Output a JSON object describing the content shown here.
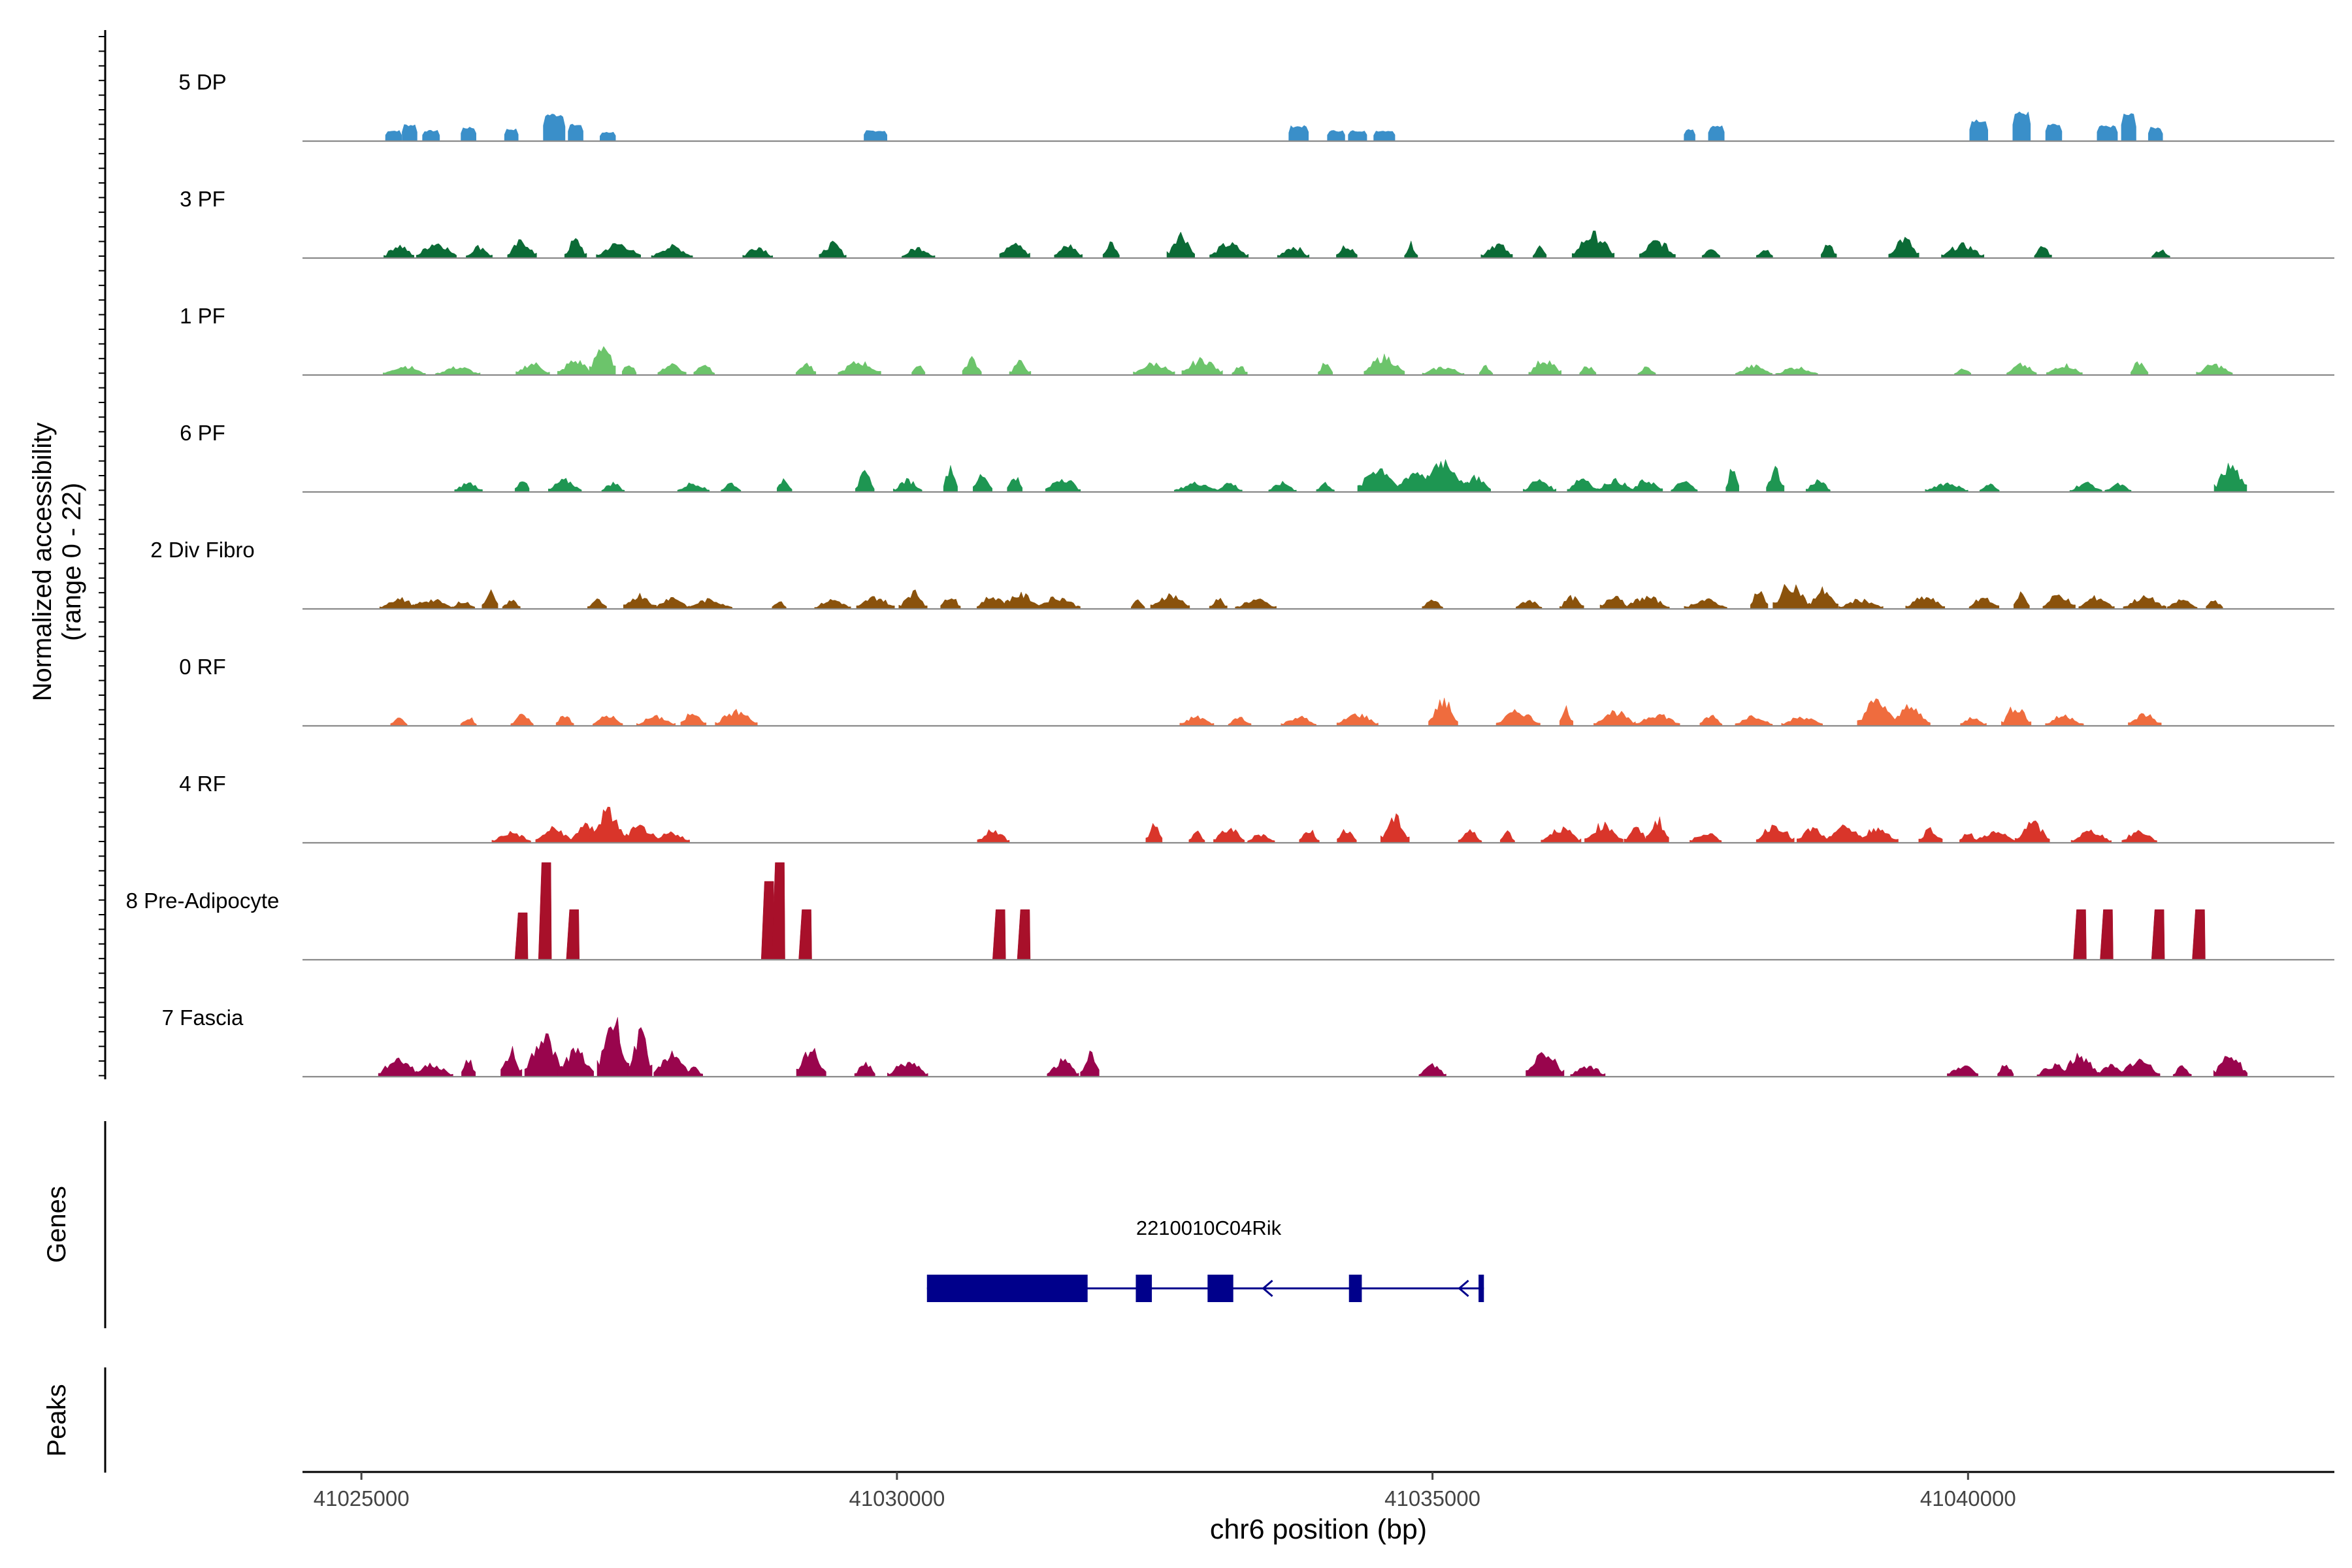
{
  "chart_data": {
    "type": "coverage-track",
    "y_axis_label": "Normalized accessibility",
    "y_axis_sublabel": "(range 0 - 22)",
    "yrange": [
      0,
      22
    ],
    "x_axis_title": "chr6 position (bp)",
    "xlim": [
      41024450,
      41043420
    ],
    "x_ticks": [
      {
        "value": 41025000,
        "label": "41025000"
      },
      {
        "value": 41030000,
        "label": "41030000"
      },
      {
        "value": 41035000,
        "label": "41035000"
      },
      {
        "value": 41040000,
        "label": "41040000"
      }
    ],
    "tracks": [
      {
        "name": "5 DP",
        "color": "#3a8fc9",
        "spiky": false,
        "peaks": [
          [
            41025300,
            0.35
          ],
          [
            41025450,
            0.55
          ],
          [
            41025650,
            0.35
          ],
          [
            41026000,
            0.45
          ],
          [
            41026400,
            0.4
          ],
          [
            41026800,
            0.9
          ],
          [
            41027000,
            0.55
          ],
          [
            41027300,
            0.3
          ],
          [
            41029800,
            0.35
          ],
          [
            41033750,
            0.5
          ],
          [
            41034100,
            0.35
          ],
          [
            41034300,
            0.35
          ],
          [
            41034550,
            0.35
          ],
          [
            41037400,
            0.4
          ],
          [
            41037650,
            0.5
          ],
          [
            41040100,
            0.7
          ],
          [
            41040500,
            0.95
          ],
          [
            41040800,
            0.55
          ],
          [
            41041300,
            0.5
          ],
          [
            41041500,
            0.9
          ],
          [
            41041750,
            0.45
          ]
        ]
      },
      {
        "name": "3 PF",
        "color": "#0b6b36",
        "spiky": true,
        "peaks": [
          [
            41025350,
            0.5
          ],
          [
            41025700,
            0.6
          ],
          [
            41026100,
            0.45
          ],
          [
            41026500,
            0.65
          ],
          [
            41027000,
            0.7
          ],
          [
            41027400,
            0.55
          ],
          [
            41027900,
            0.45
          ],
          [
            41028700,
            0.45
          ],
          [
            41029400,
            0.55
          ],
          [
            41030200,
            0.4
          ],
          [
            41031100,
            0.7
          ],
          [
            41031600,
            0.5
          ],
          [
            41032000,
            0.6
          ],
          [
            41032650,
            0.95
          ],
          [
            41033100,
            0.55
          ],
          [
            41033700,
            0.45
          ],
          [
            41034200,
            0.5
          ],
          [
            41034800,
            0.55
          ],
          [
            41035600,
            0.55
          ],
          [
            41036000,
            0.45
          ],
          [
            41036500,
            0.9
          ],
          [
            41037100,
            0.65
          ],
          [
            41037600,
            0.45
          ],
          [
            41038100,
            0.4
          ],
          [
            41038700,
            0.55
          ],
          [
            41039400,
            0.75
          ],
          [
            41039950,
            0.5
          ],
          [
            41040700,
            0.45
          ],
          [
            41041800,
            0.35
          ]
        ]
      },
      {
        "name": "1 PF",
        "color": "#6cc46b",
        "spiky": true,
        "peaks": [
          [
            41025400,
            0.35
          ],
          [
            41025900,
            0.3
          ],
          [
            41026600,
            0.45
          ],
          [
            41027000,
            0.55
          ],
          [
            41027250,
            1.2
          ],
          [
            41027500,
            0.5
          ],
          [
            41027900,
            0.45
          ],
          [
            41028200,
            0.45
          ],
          [
            41029150,
            0.45
          ],
          [
            41029650,
            0.5
          ],
          [
            41030200,
            0.45
          ],
          [
            41030700,
            0.65
          ],
          [
            41031150,
            0.5
          ],
          [
            41032400,
            0.45
          ],
          [
            41032850,
            0.6
          ],
          [
            41033200,
            0.4
          ],
          [
            41034000,
            0.45
          ],
          [
            41034550,
            0.7
          ],
          [
            41035100,
            0.3
          ],
          [
            41035500,
            0.35
          ],
          [
            41036050,
            0.6
          ],
          [
            41036450,
            0.35
          ],
          [
            41037000,
            0.3
          ],
          [
            41038000,
            0.35
          ],
          [
            41038400,
            0.3
          ],
          [
            41039950,
            0.3
          ],
          [
            41040500,
            0.4
          ],
          [
            41040900,
            0.4
          ],
          [
            41041600,
            0.55
          ],
          [
            41042300,
            0.4
          ]
        ]
      },
      {
        "name": "6 PF",
        "color": "#1e9652",
        "spiky": true,
        "peaks": [
          [
            41026000,
            0.35
          ],
          [
            41026500,
            0.55
          ],
          [
            41026900,
            0.45
          ],
          [
            41027350,
            0.35
          ],
          [
            41028100,
            0.35
          ],
          [
            41028450,
            0.35
          ],
          [
            41028950,
            0.55
          ],
          [
            41029700,
            0.7
          ],
          [
            41030100,
            0.45
          ],
          [
            41030500,
            1.05
          ],
          [
            41030800,
            0.7
          ],
          [
            41031100,
            0.65
          ],
          [
            41031550,
            0.55
          ],
          [
            41032800,
            0.35
          ],
          [
            41033100,
            0.35
          ],
          [
            41033600,
            0.35
          ],
          [
            41034000,
            0.35
          ],
          [
            41034500,
            0.95
          ],
          [
            41034850,
            0.8
          ],
          [
            41035100,
            1.25
          ],
          [
            41035400,
            0.6
          ],
          [
            41036000,
            0.45
          ],
          [
            41036400,
            0.55
          ],
          [
            41036700,
            0.45
          ],
          [
            41037000,
            0.45
          ],
          [
            41037350,
            0.4
          ],
          [
            41037800,
            0.9
          ],
          [
            41038200,
            0.9
          ],
          [
            41038600,
            0.45
          ],
          [
            41039800,
            0.35
          ],
          [
            41040200,
            0.3
          ],
          [
            41041100,
            0.35
          ],
          [
            41041400,
            0.3
          ],
          [
            41042450,
            1.0
          ]
        ]
      },
      {
        "name": "2 Div Fibro",
        "color": "#8a520c",
        "spiky": true,
        "peaks": [
          [
            41025350,
            0.4
          ],
          [
            41025650,
            0.35
          ],
          [
            41025950,
            0.3
          ],
          [
            41026200,
            0.7
          ],
          [
            41026400,
            0.35
          ],
          [
            41027200,
            0.35
          ],
          [
            41027600,
            0.55
          ],
          [
            41027900,
            0.45
          ],
          [
            41028250,
            0.35
          ],
          [
            41028900,
            0.35
          ],
          [
            41029400,
            0.35
          ],
          [
            41029800,
            0.45
          ],
          [
            41030150,
            0.65
          ],
          [
            41030500,
            0.55
          ],
          [
            41030900,
            0.5
          ],
          [
            41031150,
            0.55
          ],
          [
            41031500,
            0.45
          ],
          [
            41032250,
            0.35
          ],
          [
            41032550,
            0.55
          ],
          [
            41033000,
            0.4
          ],
          [
            41033350,
            0.35
          ],
          [
            41035000,
            0.35
          ],
          [
            41035900,
            0.35
          ],
          [
            41036300,
            0.45
          ],
          [
            41036700,
            0.55
          ],
          [
            41037000,
            0.45
          ],
          [
            41037550,
            0.35
          ],
          [
            41038050,
            0.7
          ],
          [
            41038350,
            0.95
          ],
          [
            41038650,
            0.75
          ],
          [
            41039000,
            0.35
          ],
          [
            41039600,
            0.45
          ],
          [
            41040150,
            0.45
          ],
          [
            41040500,
            0.65
          ],
          [
            41040850,
            0.55
          ],
          [
            41041200,
            0.45
          ],
          [
            41041650,
            0.45
          ],
          [
            41042000,
            0.35
          ],
          [
            41042300,
            0.35
          ]
        ]
      },
      {
        "name": "0 RF",
        "color": "#ef6c3e",
        "spiky": true,
        "peaks": [
          [
            41025350,
            0.3
          ],
          [
            41026000,
            0.35
          ],
          [
            41026500,
            0.4
          ],
          [
            41026900,
            0.45
          ],
          [
            41027300,
            0.4
          ],
          [
            41027750,
            0.35
          ],
          [
            41028100,
            0.55
          ],
          [
            41028500,
            0.55
          ],
          [
            41032800,
            0.35
          ],
          [
            41033200,
            0.35
          ],
          [
            41033750,
            0.35
          ],
          [
            41034300,
            0.45
          ],
          [
            41035100,
            0.95
          ],
          [
            41035800,
            0.55
          ],
          [
            41036250,
            0.7
          ],
          [
            41036700,
            0.55
          ],
          [
            41037100,
            0.45
          ],
          [
            41037600,
            0.4
          ],
          [
            41038000,
            0.4
          ],
          [
            41038450,
            0.35
          ],
          [
            41039150,
            0.95
          ],
          [
            41039450,
            0.7
          ],
          [
            41040050,
            0.35
          ],
          [
            41040450,
            0.75
          ],
          [
            41040900,
            0.4
          ],
          [
            41041650,
            0.45
          ]
        ]
      },
      {
        "name": "4 RF",
        "color": "#d9352a",
        "spiky": true,
        "peaks": [
          [
            41026400,
            0.4
          ],
          [
            41026800,
            0.55
          ],
          [
            41027100,
            0.65
          ],
          [
            41027300,
            1.2
          ],
          [
            41027600,
            0.6
          ],
          [
            41027900,
            0.4
          ],
          [
            41030900,
            0.5
          ],
          [
            41032400,
            0.7
          ],
          [
            41032800,
            0.45
          ],
          [
            41033100,
            0.55
          ],
          [
            41033400,
            0.35
          ],
          [
            41033850,
            0.5
          ],
          [
            41034200,
            0.55
          ],
          [
            41034650,
            0.95
          ],
          [
            41035350,
            0.45
          ],
          [
            41035700,
            0.45
          ],
          [
            41036200,
            0.55
          ],
          [
            41036600,
            0.7
          ],
          [
            41036900,
            0.55
          ],
          [
            41037100,
            0.9
          ],
          [
            41037550,
            0.4
          ],
          [
            41038200,
            0.7
          ],
          [
            41038550,
            0.55
          ],
          [
            41038850,
            0.6
          ],
          [
            41039150,
            0.55
          ],
          [
            41039650,
            0.55
          ],
          [
            41040000,
            0.45
          ],
          [
            41040250,
            0.4
          ],
          [
            41040600,
            0.75
          ],
          [
            41041150,
            0.45
          ],
          [
            41041600,
            0.45
          ]
        ]
      },
      {
        "name": "8 Pre-Adipocyte",
        "color": "#a8102a",
        "spiky": false,
        "blocky": true,
        "peaks": [
          [
            41026500,
            1.5
          ],
          [
            41026720,
            3.1
          ],
          [
            41026980,
            1.6
          ],
          [
            41028800,
            2.5
          ],
          [
            41028900,
            3.1
          ],
          [
            41029150,
            1.6
          ],
          [
            41030960,
            1.6
          ],
          [
            41031190,
            1.6
          ],
          [
            41041050,
            1.6
          ],
          [
            41041300,
            1.6
          ],
          [
            41041780,
            1.6
          ],
          [
            41042160,
            1.6
          ]
        ]
      },
      {
        "name": "7 Fascia",
        "color": "#99054d",
        "spiky": true,
        "peaks": [
          [
            41025350,
            0.7
          ],
          [
            41025650,
            0.45
          ],
          [
            41026000,
            0.7
          ],
          [
            41026400,
            1.0
          ],
          [
            41026700,
            1.6
          ],
          [
            41027000,
            1.0
          ],
          [
            41027350,
            2.2
          ],
          [
            41027600,
            1.6
          ],
          [
            41027900,
            0.9
          ],
          [
            41028100,
            0.35
          ],
          [
            41029200,
            1.0
          ],
          [
            41029700,
            0.55
          ],
          [
            41030100,
            0.55
          ],
          [
            41031550,
            0.6
          ],
          [
            41031800,
            0.95
          ],
          [
            41035000,
            0.45
          ],
          [
            41036050,
            1.0
          ],
          [
            41036450,
            0.45
          ],
          [
            41039950,
            0.45
          ],
          [
            41040350,
            0.55
          ],
          [
            41040800,
            0.45
          ],
          [
            41041050,
            0.8
          ],
          [
            41041350,
            0.45
          ],
          [
            41041600,
            0.6
          ],
          [
            41042000,
            0.45
          ],
          [
            41042450,
            0.85
          ]
        ]
      }
    ],
    "genes_label": "Genes",
    "peaks_label": "Peaks",
    "gene": {
      "name": "2210010C04Rik",
      "strand": "-",
      "color": "#00008b",
      "start": 41030280,
      "end": 41035480,
      "exons": [
        [
          41030280,
          41031780
        ],
        [
          41032230,
          41032380
        ],
        [
          41032900,
          41033140
        ],
        [
          41034220,
          41034340
        ],
        [
          41035430,
          41035480
        ]
      ],
      "arrows": [
        41033420,
        41035250
      ]
    }
  }
}
